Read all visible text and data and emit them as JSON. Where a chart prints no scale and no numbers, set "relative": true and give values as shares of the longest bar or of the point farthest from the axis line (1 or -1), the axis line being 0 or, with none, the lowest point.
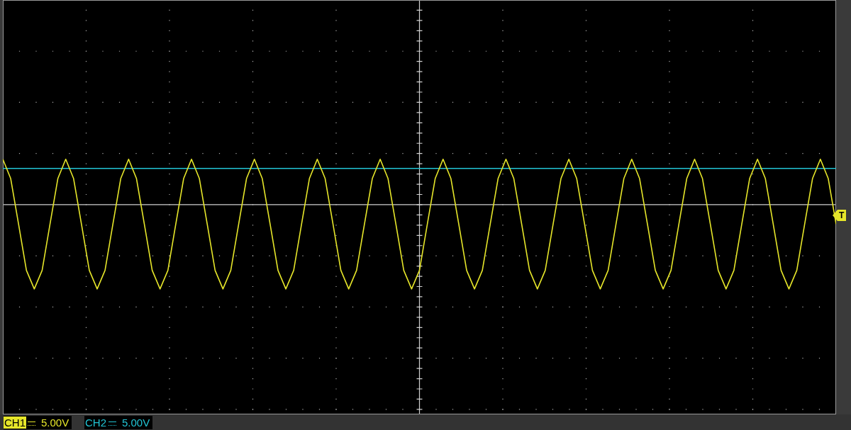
{
  "chart_data": {
    "type": "line",
    "relative": true,
    "grid": true,
    "marker": "none",
    "line_style": "solid",
    "categories": [
      null,
      null,
      null,
      null,
      null,
      null,
      null,
      null,
      null,
      null,
      null,
      null,
      null,
      null,
      null,
      null,
      null,
      null,
      null,
      null,
      null,
      null,
      null,
      null,
      null,
      null,
      null,
      null,
      null,
      null,
      null,
      null,
      null,
      null,
      null,
      null,
      null,
      null,
      null,
      null,
      null,
      null,
      null,
      null,
      null,
      null,
      null,
      null,
      null,
      null,
      null,
      null,
      null,
      null,
      null,
      null,
      null,
      null,
      null,
      null,
      null,
      null,
      null,
      null,
      null,
      null,
      null,
      null,
      null,
      null,
      null,
      null,
      null,
      null,
      null,
      null,
      null,
      null,
      null,
      null,
      null,
      null,
      null,
      null,
      null,
      null,
      null,
      null,
      null,
      null,
      null,
      null,
      null,
      null,
      null,
      null,
      null,
      null,
      null,
      null,
      null,
      null,
      null,
      null,
      null,
      null,
      null
    ],
    "series": [
      {
        "color": "#e6e62a",
        "values": [
          0.54,
          0.31,
          -0.23,
          -0.78,
          -1,
          -0.78,
          -0.23,
          0.31,
          0.54,
          0.31,
          -0.23,
          -0.78,
          -1,
          -0.78,
          -0.23,
          0.31,
          0.54,
          0.31,
          -0.23,
          -0.78,
          -1,
          -0.78,
          -0.23,
          0.31,
          0.54,
          0.31,
          -0.23,
          -0.78,
          -1,
          -0.78,
          -0.23,
          0.31,
          0.54,
          0.31,
          -0.23,
          -0.78,
          -1,
          -0.78,
          -0.23,
          0.31,
          0.54,
          0.31,
          -0.23,
          -0.78,
          -1,
          -0.78,
          -0.23,
          0.31,
          0.54,
          0.31,
          -0.23,
          -0.78,
          -1,
          -0.78,
          -0.23,
          0.31,
          0.54,
          0.31,
          -0.23,
          -0.78,
          -1,
          -0.78,
          -0.23,
          0.31,
          0.54,
          0.31,
          -0.23,
          -0.78,
          -1,
          -0.78,
          -0.23,
          0.31,
          0.54,
          0.31,
          -0.23,
          -0.78,
          -1,
          -0.78,
          -0.23,
          0.31,
          0.54,
          0.31,
          -0.23,
          -0.78,
          -1,
          -0.78,
          -0.23,
          0.31,
          0.54,
          0.31,
          -0.23,
          -0.78,
          -1,
          -0.78,
          -0.23,
          0.31,
          0.54,
          0.31,
          -0.23,
          -0.78,
          -1,
          -0.78,
          -0.23,
          0.31,
          0.54,
          0.31,
          -0.23
        ]
      },
      {
        "color": "#22c4d4",
        "values": [
          0.43,
          0.43,
          0.43,
          0.43,
          0.43,
          0.43,
          0.43,
          0.43,
          0.43,
          0.43,
          0.43,
          0.43,
          0.43,
          0.43,
          0.43,
          0.43,
          0.43,
          0.43,
          0.43,
          0.43,
          0.43,
          0.43,
          0.43,
          0.43,
          0.43,
          0.43,
          0.43,
          0.43,
          0.43,
          0.43,
          0.43,
          0.43,
          0.43,
          0.43,
          0.43,
          0.43,
          0.43,
          0.43,
          0.43,
          0.43,
          0.43,
          0.43,
          0.43,
          0.43,
          0.43,
          0.43,
          0.43,
          0.43,
          0.43,
          0.43,
          0.43,
          0.43,
          0.43,
          0.43,
          0.43,
          0.43,
          0.43,
          0.43,
          0.43,
          0.43,
          0.43,
          0.43,
          0.43,
          0.43,
          0.43,
          0.43,
          0.43,
          0.43,
          0.43,
          0.43,
          0.43,
          0.43,
          0.43,
          0.43,
          0.43,
          0.43,
          0.43,
          0.43,
          0.43,
          0.43,
          0.43,
          0.43,
          0.43,
          0.43,
          0.43,
          0.43,
          0.43,
          0.43,
          0.43,
          0.43,
          0.43,
          0.43,
          0.43,
          0.43,
          0.43,
          0.43,
          0.43,
          0.43,
          0.43,
          0.43,
          0.43,
          0.43,
          0.43,
          0.43,
          0.43,
          0.43,
          0.43
        ]
      }
    ],
    "annotations": [
      "CH1",
      "5.00V",
      "CH2",
      "5.00V",
      "T"
    ]
  }
}
